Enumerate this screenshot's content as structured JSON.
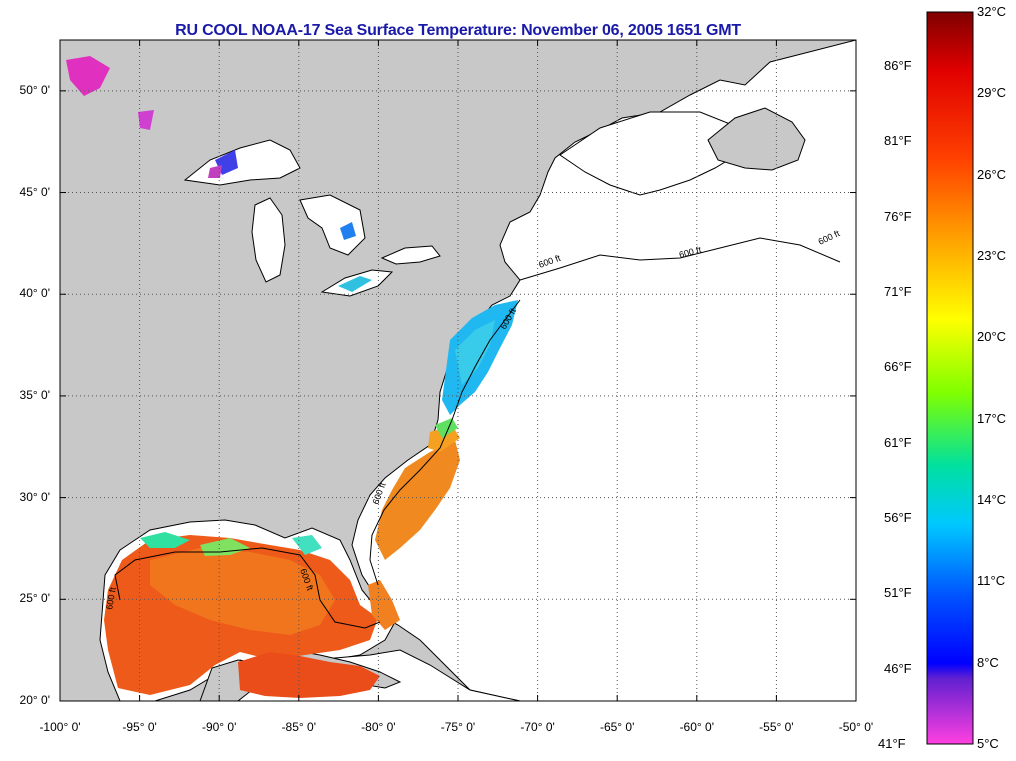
{
  "title": "RU COOL  NOAA-17  Sea Surface Temperature:  November 06, 2005 1651 GMT",
  "map": {
    "lon_range": [
      -100,
      -50
    ],
    "lat_range": [
      20,
      52.5
    ],
    "lat_ticks": [
      {
        "value": 50,
        "label": "50° 0'"
      },
      {
        "value": 45,
        "label": "45° 0'"
      },
      {
        "value": 40,
        "label": "40° 0'"
      },
      {
        "value": 35,
        "label": "35° 0'"
      },
      {
        "value": 30,
        "label": "30° 0'"
      },
      {
        "value": 25,
        "label": "25° 0'"
      },
      {
        "value": 20,
        "label": "20° 0'"
      }
    ],
    "lon_ticks": [
      {
        "value": -100,
        "label": "-100° 0'"
      },
      {
        "value": -95,
        "label": "-95° 0'"
      },
      {
        "value": -90,
        "label": "-90° 0'"
      },
      {
        "value": -85,
        "label": "-85° 0'"
      },
      {
        "value": -80,
        "label": "-80° 0'"
      },
      {
        "value": -75,
        "label": "-75° 0'"
      },
      {
        "value": -70,
        "label": "-70° 0'"
      },
      {
        "value": -65,
        "label": "-65° 0'"
      },
      {
        "value": -60,
        "label": "-60° 0'"
      },
      {
        "value": -55,
        "label": "-55° 0'"
      },
      {
        "value": -50,
        "label": "-50° 0'"
      }
    ],
    "isobath_label": "600 ft",
    "colors": {
      "land": "#c8c8c8",
      "ocean": "#ffffff",
      "grid": "#555555"
    }
  },
  "colorbar": {
    "celsius": [
      "32°C",
      "29°C",
      "26°C",
      "23°C",
      "20°C",
      "17°C",
      "14°C",
      "11°C",
      "8°C",
      "5°C"
    ],
    "fahrenheit": [
      "86°F",
      "81°F",
      "76°F",
      "71°F",
      "66°F",
      "61°F",
      "56°F",
      "51°F",
      "46°F",
      "41°F"
    ],
    "stops": [
      "#8b0000",
      "#ff0000",
      "#ff7f00",
      "#ffff00",
      "#7fff00",
      "#00e5e5",
      "#1e90ff",
      "#0000ff",
      "#8040c0",
      "#ff00ff"
    ]
  }
}
